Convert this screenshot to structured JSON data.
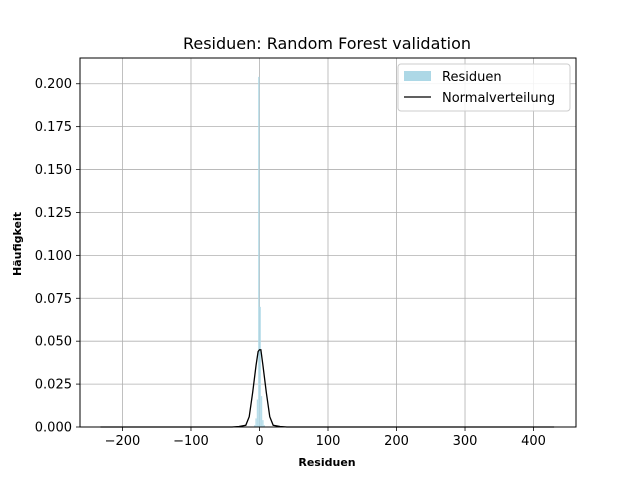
{
  "chart_data": {
    "type": "histogram",
    "title": "Residuen: Random Forest validation",
    "xlabel": "Residuen",
    "ylabel": "Häufigkeit",
    "xlim": [
      -262,
      462
    ],
    "ylim": [
      0,
      0.215
    ],
    "xticks": [
      -200,
      -100,
      0,
      100,
      200,
      300,
      400
    ],
    "xtick_labels": [
      "−200",
      "−100",
      "0",
      "100",
      "200",
      "300",
      "400"
    ],
    "yticks": [
      0,
      0.025,
      0.05,
      0.075,
      0.1,
      0.125,
      0.15,
      0.175,
      0.2
    ],
    "ytick_labels": [
      "0.000",
      "0.025",
      "0.050",
      "0.075",
      "0.100",
      "0.125",
      "0.150",
      "0.175",
      "0.200"
    ],
    "grid": true,
    "legend_position": "top-right",
    "series": [
      {
        "name": "Residuen",
        "kind": "bars",
        "color": "#add8e6",
        "bins": [
          {
            "x0": -8,
            "x1": -6,
            "value": 0.001
          },
          {
            "x0": -6,
            "x1": -4,
            "value": 0.005
          },
          {
            "x0": -4,
            "x1": -2,
            "value": 0.016
          },
          {
            "x0": -2,
            "x1": 0,
            "value": 0.204
          },
          {
            "x0": 0,
            "x1": 2,
            "value": 0.07
          },
          {
            "x0": 2,
            "x1": 4,
            "value": 0.018
          },
          {
            "x0": 4,
            "x1": 6,
            "value": 0.004
          },
          {
            "x0": 6,
            "x1": 8,
            "value": 0.001
          }
        ]
      },
      {
        "name": "Normalverteilung",
        "kind": "line",
        "color": "#000000",
        "x": [
          -232,
          -60,
          -40,
          -30,
          -20,
          -15,
          -10,
          -5,
          -2,
          0,
          2,
          5,
          10,
          15,
          20,
          30,
          40,
          60,
          430
        ],
        "y": [
          0,
          0,
          0,
          0.0003,
          0.001,
          0.006,
          0.02,
          0.036,
          0.044,
          0.045,
          0.045,
          0.036,
          0.02,
          0.006,
          0.001,
          0.0003,
          0,
          0,
          0
        ]
      }
    ]
  }
}
